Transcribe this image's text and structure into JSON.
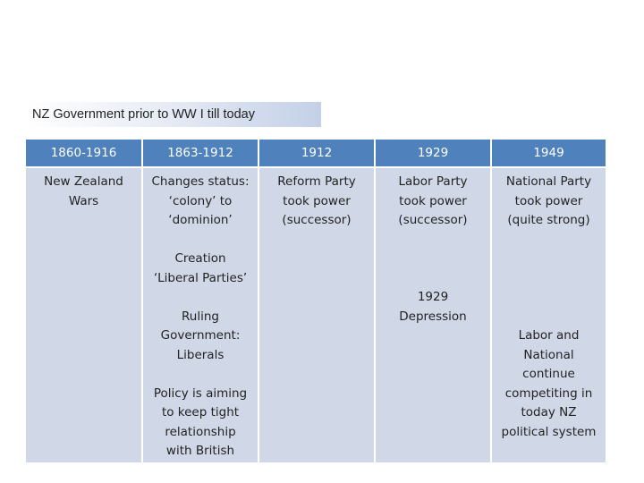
{
  "title": "NZ Government prior to WW I till today",
  "headers": [
    "1860-1916",
    "1863-1912",
    "1912",
    "1929",
    "1949"
  ],
  "columns": [
    {
      "blocks": [
        "New Zealand\nWars"
      ]
    },
    {
      "blocks": [
        "Changes status:\n‘colony’ to\n‘dominion’",
        "Creation\n‘Liberal Parties’",
        "Ruling\nGovernment:\nLiberals",
        "Policy is aiming\nto keep tight\nrelationship\nwith British"
      ]
    },
    {
      "blocks": [
        "Reform Party\ntook power\n(successor)"
      ]
    },
    {
      "blocks": [
        "Labor Party\ntook power\n(successor)",
        "1929\nDepression"
      ]
    },
    {
      "blocks": [
        "National Party\ntook power\n(quite strong)",
        "Labor and\nNational\ncontinue\ncompetiting in\ntoday NZ\npolitical system"
      ]
    }
  ]
}
